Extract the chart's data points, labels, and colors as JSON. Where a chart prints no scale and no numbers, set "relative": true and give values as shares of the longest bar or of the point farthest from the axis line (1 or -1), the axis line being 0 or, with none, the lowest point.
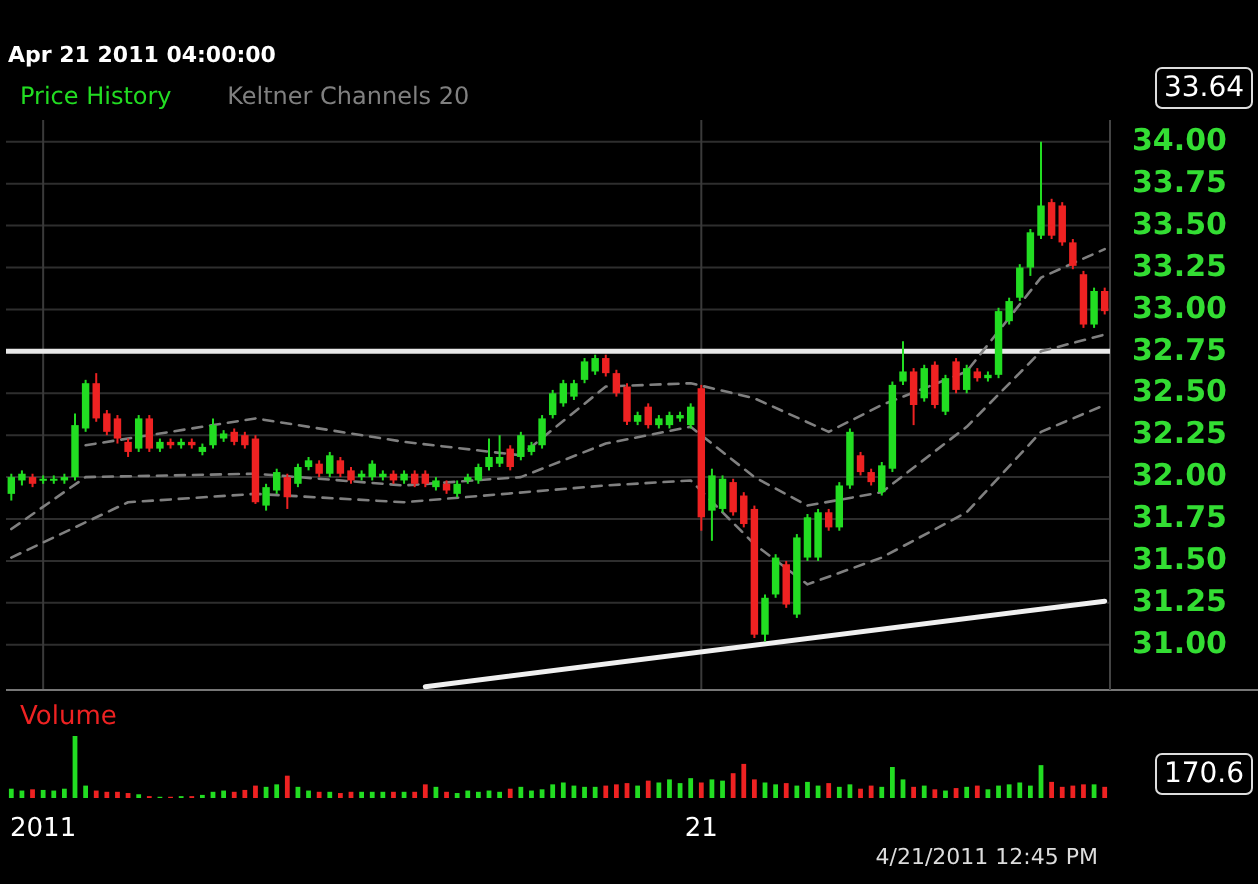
{
  "chart_data": [
    {
      "type": "candlestick",
      "subtitle": "Apr 21 2011 04:00:00",
      "legend": "top left",
      "grid": true,
      "tick_labels": "y",
      "categories": [
        null,
        null,
        null,
        "2011",
        null,
        null,
        null,
        null,
        null,
        null,
        null,
        null,
        null,
        null,
        null,
        null,
        null,
        null,
        null,
        null,
        null,
        null,
        null,
        null,
        null,
        null,
        null,
        null,
        null,
        null,
        null,
        null,
        null,
        null,
        null,
        null,
        null,
        null,
        null,
        null,
        null,
        null,
        null,
        null,
        null,
        null,
        null,
        null,
        null,
        null,
        null,
        null,
        null,
        null,
        null,
        null,
        null,
        null,
        null,
        null,
        null,
        null,
        null,
        null,
        null,
        "21",
        null,
        null,
        null,
        null,
        null,
        null,
        null,
        null,
        null,
        null,
        null,
        null,
        null,
        null,
        null,
        null,
        null,
        null,
        null,
        null,
        null,
        null,
        null,
        null,
        null,
        null,
        null,
        null,
        null,
        null,
        null,
        null,
        null,
        null,
        null,
        null,
        null,
        null
      ],
      "ylim": [
        30.73,
        34.13
      ],
      "yticks": [
        {
          "value": 31,
          "label": "31.00"
        },
        {
          "value": 31.25,
          "label": "31.25"
        },
        {
          "value": 31.5,
          "label": "31.50"
        },
        {
          "value": 31.75,
          "label": "31.75"
        },
        {
          "value": 32,
          "label": "32.00"
        },
        {
          "value": 32.25,
          "label": "32.25"
        },
        {
          "value": 32.5,
          "label": "32.50"
        },
        {
          "value": 32.75,
          "label": "32.75"
        },
        {
          "value": 33,
          "label": "33.00"
        },
        {
          "value": 33.25,
          "label": "33.25"
        },
        {
          "value": 33.5,
          "label": "33.50"
        },
        {
          "value": 33.75,
          "label": "33.75"
        },
        {
          "value": 34,
          "label": "34.00"
        }
      ],
      "ref_lines": [
        {
          "axis": "y",
          "value": 32.75,
          "color": "#e8e8e8"
        }
      ],
      "annotations": [
        "33.64"
      ],
      "series": [
        {
          "type": "candlestick",
          "name": "Price History",
          "color": "#22dd22",
          "ohlc": [
            [
              31.9,
              32.02,
              31.86,
              32.0
            ],
            [
              31.98,
              32.04,
              31.95,
              32.02
            ],
            [
              32.0,
              32.02,
              31.94,
              31.96
            ],
            [
              31.98,
              32.01,
              31.96,
              31.99
            ],
            [
              31.98,
              32.01,
              31.96,
              31.99
            ],
            [
              31.98,
              32.02,
              31.96,
              32.0
            ],
            [
              32.0,
              32.38,
              31.98,
              32.31
            ],
            [
              32.29,
              32.58,
              32.27,
              32.56
            ],
            [
              32.56,
              32.62,
              32.33,
              32.35
            ],
            [
              32.38,
              32.4,
              32.25,
              32.27
            ],
            [
              32.35,
              32.37,
              32.2,
              32.23
            ],
            [
              32.21,
              32.23,
              32.12,
              32.15
            ],
            [
              32.17,
              32.37,
              32.15,
              32.35
            ],
            [
              32.35,
              32.37,
              32.15,
              32.17
            ],
            [
              32.17,
              32.23,
              32.15,
              32.21
            ],
            [
              32.21,
              32.23,
              32.17,
              32.19
            ],
            [
              32.19,
              32.23,
              32.17,
              32.21
            ],
            [
              32.21,
              32.23,
              32.17,
              32.19
            ],
            [
              32.15,
              32.2,
              32.13,
              32.18
            ],
            [
              32.19,
              32.35,
              32.17,
              32.31
            ],
            [
              32.23,
              32.28,
              32.21,
              32.26
            ],
            [
              32.27,
              32.29,
              32.19,
              32.21
            ],
            [
              32.25,
              32.27,
              32.17,
              32.19
            ],
            [
              32.23,
              32.25,
              31.84,
              31.85
            ],
            [
              31.83,
              31.96,
              31.8,
              31.94
            ],
            [
              31.92,
              32.05,
              31.9,
              32.03
            ],
            [
              32.0,
              32.02,
              31.81,
              31.88
            ],
            [
              31.96,
              32.08,
              31.94,
              32.06
            ],
            [
              32.06,
              32.12,
              32.04,
              32.1
            ],
            [
              32.08,
              32.1,
              32.0,
              32.02
            ],
            [
              32.02,
              32.15,
              32.0,
              32.13
            ],
            [
              32.1,
              32.12,
              32.0,
              32.02
            ],
            [
              32.04,
              32.06,
              31.96,
              31.98
            ],
            [
              32.0,
              32.04,
              31.98,
              32.02
            ],
            [
              32.0,
              32.1,
              31.98,
              32.08
            ],
            [
              32.0,
              32.04,
              31.98,
              32.02
            ],
            [
              32.02,
              32.04,
              31.96,
              31.98
            ],
            [
              31.98,
              32.04,
              31.96,
              32.02
            ],
            [
              32.02,
              32.04,
              31.94,
              31.96
            ],
            [
              32.02,
              32.04,
              31.94,
              31.96
            ],
            [
              31.94,
              32.0,
              31.92,
              31.98
            ],
            [
              31.96,
              31.98,
              31.9,
              31.92
            ],
            [
              31.9,
              31.98,
              31.88,
              31.96
            ],
            [
              31.98,
              32.02,
              31.96,
              32.0
            ],
            [
              31.98,
              32.08,
              31.96,
              32.06
            ],
            [
              32.06,
              32.23,
              32.04,
              32.12
            ],
            [
              32.08,
              32.25,
              32.06,
              32.12
            ],
            [
              32.17,
              32.19,
              32.04,
              32.06
            ],
            [
              32.12,
              32.27,
              32.1,
              32.25
            ],
            [
              32.15,
              32.21,
              32.13,
              32.19
            ],
            [
              32.19,
              32.37,
              32.17,
              32.35
            ],
            [
              32.37,
              32.52,
              32.35,
              32.5
            ],
            [
              32.44,
              32.58,
              32.42,
              32.56
            ],
            [
              32.48,
              32.58,
              32.46,
              32.56
            ],
            [
              32.58,
              32.71,
              32.56,
              32.69
            ],
            [
              32.63,
              32.73,
              32.61,
              32.71
            ],
            [
              32.71,
              32.73,
              32.6,
              32.62
            ],
            [
              32.62,
              32.64,
              32.48,
              32.5
            ],
            [
              32.54,
              32.56,
              32.31,
              32.33
            ],
            [
              32.33,
              32.39,
              32.31,
              32.37
            ],
            [
              32.42,
              32.44,
              32.29,
              32.31
            ],
            [
              32.31,
              32.37,
              32.29,
              32.35
            ],
            [
              32.31,
              32.39,
              32.29,
              32.37
            ],
            [
              32.35,
              32.39,
              32.33,
              32.37
            ],
            [
              32.31,
              32.44,
              32.29,
              32.42
            ],
            [
              32.53,
              32.55,
              31.68,
              31.76
            ],
            [
              31.8,
              32.05,
              31.62,
              32.01
            ],
            [
              31.81,
              32.01,
              31.79,
              31.99
            ],
            [
              31.97,
              31.99,
              31.77,
              31.79
            ],
            [
              31.89,
              31.91,
              31.7,
              31.72
            ],
            [
              31.81,
              31.83,
              31.04,
              31.06
            ],
            [
              31.06,
              31.3,
              31.02,
              31.28
            ],
            [
              31.3,
              31.54,
              31.28,
              31.52
            ],
            [
              31.48,
              31.5,
              31.22,
              31.24
            ],
            [
              31.18,
              31.66,
              31.16,
              31.64
            ],
            [
              31.52,
              31.78,
              31.5,
              31.76
            ],
            [
              31.52,
              31.81,
              31.5,
              31.79
            ],
            [
              31.79,
              31.81,
              31.68,
              31.7
            ],
            [
              31.7,
              31.97,
              31.68,
              31.95
            ],
            [
              31.95,
              32.29,
              31.93,
              32.27
            ],
            [
              32.13,
              32.15,
              32.01,
              32.03
            ],
            [
              32.03,
              32.05,
              31.95,
              31.97
            ],
            [
              31.91,
              32.09,
              31.89,
              32.07
            ],
            [
              32.05,
              32.57,
              32.03,
              32.55
            ],
            [
              32.57,
              32.81,
              32.55,
              32.63
            ],
            [
              32.63,
              32.65,
              32.31,
              32.43
            ],
            [
              32.47,
              32.67,
              32.45,
              32.65
            ],
            [
              32.67,
              32.69,
              32.41,
              32.43
            ],
            [
              32.39,
              32.61,
              32.37,
              32.59
            ],
            [
              32.69,
              32.71,
              32.5,
              32.52
            ],
            [
              32.52,
              32.67,
              32.5,
              32.65
            ],
            [
              32.63,
              32.65,
              32.57,
              32.59
            ],
            [
              32.59,
              32.63,
              32.57,
              32.61
            ],
            [
              32.61,
              33.01,
              32.59,
              32.99
            ],
            [
              32.93,
              33.07,
              32.91,
              33.05
            ],
            [
              33.07,
              33.27,
              33.05,
              33.25
            ],
            [
              33.25,
              33.48,
              33.2,
              33.46
            ],
            [
              33.44,
              34.0,
              33.42,
              33.62
            ],
            [
              33.64,
              33.66,
              33.42,
              33.44
            ],
            [
              33.62,
              33.64,
              33.38,
              33.4
            ],
            [
              33.4,
              33.42,
              33.24,
              33.26
            ],
            [
              33.21,
              33.23,
              32.89,
              32.91
            ],
            [
              32.91,
              33.13,
              32.89,
              33.11
            ],
            [
              33.11,
              33.13,
              32.97,
              32.99
            ]
          ],
          "colors": [
            "#22dd22",
            "#22dd22",
            "#ee2222",
            "#22dd22",
            "#22dd22",
            "#22dd22",
            "#22dd22",
            "#22dd22",
            "#ee2222",
            "#ee2222",
            "#ee2222",
            "#ee2222",
            "#22dd22",
            "#ee2222",
            "#22dd22",
            "#ee2222",
            "#22dd22",
            "#ee2222",
            "#22dd22",
            "#22dd22",
            "#22dd22",
            "#ee2222",
            "#ee2222",
            "#ee2222",
            "#22dd22",
            "#22dd22",
            "#ee2222",
            "#22dd22",
            "#22dd22",
            "#ee2222",
            "#22dd22",
            "#ee2222",
            "#ee2222",
            "#22dd22",
            "#22dd22",
            "#22dd22",
            "#ee2222",
            "#22dd22",
            "#ee2222",
            "#ee2222",
            "#22dd22",
            "#ee2222",
            "#22dd22",
            "#22dd22",
            "#22dd22",
            "#22dd22",
            "#22dd22",
            "#ee2222",
            "#22dd22",
            "#22dd22",
            "#22dd22",
            "#22dd22",
            "#22dd22",
            "#22dd22",
            "#22dd22",
            "#22dd22",
            "#ee2222",
            "#ee2222",
            "#ee2222",
            "#22dd22",
            "#ee2222",
            "#22dd22",
            "#22dd22",
            "#22dd22",
            "#22dd22",
            "#ee2222",
            "#22dd22",
            "#22dd22",
            "#ee2222",
            "#ee2222",
            "#ee2222",
            "#22dd22",
            "#22dd22",
            "#ee2222",
            "#22dd22",
            "#22dd22",
            "#22dd22",
            "#ee2222",
            "#22dd22",
            "#22dd22",
            "#ee2222",
            "#ee2222",
            "#22dd22",
            "#22dd22",
            "#22dd22",
            "#ee2222",
            "#22dd22",
            "#ee2222",
            "#22dd22",
            "#ee2222",
            "#22dd22",
            "#ee2222",
            "#22dd22",
            "#22dd22",
            "#22dd22",
            "#22dd22",
            "#22dd22",
            "#22dd22",
            "#ee2222",
            "#ee2222",
            "#ee2222",
            "#ee2222",
            "#22dd22",
            "#ee2222"
          ]
        },
        {
          "type": "line",
          "name": "Keltner Channels 20",
          "color": "#808080",
          "line_style": "dashed",
          "values": [
            31.69,
            null,
            null,
            null,
            null,
            null,
            null,
            32.0,
            null,
            null,
            null,
            null,
            null,
            null,
            null,
            null,
            null,
            null,
            null,
            null,
            null,
            null,
            null,
            32.02,
            null,
            null,
            null,
            null,
            null,
            null,
            null,
            null,
            null,
            null,
            null,
            null,
            null,
            31.95,
            null,
            null,
            null,
            null,
            null,
            null,
            null,
            null,
            null,
            null,
            32.0,
            null,
            null,
            null,
            null,
            null,
            null,
            null,
            32.2,
            null,
            null,
            null,
            null,
            null,
            null,
            null,
            32.3,
            null,
            null,
            null,
            null,
            null,
            32.0,
            null,
            null,
            null,
            null,
            31.83,
            null,
            null,
            null,
            null,
            null,
            null,
            31.91,
            null,
            null,
            null,
            null,
            null,
            null,
            null,
            32.3,
            null,
            null,
            null,
            null,
            null,
            null,
            32.75,
            null,
            null,
            null,
            null,
            null,
            32.85
          ]
        },
        {
          "type": "line",
          "color": "#808080",
          "line_style": "dashed",
          "values": [
            null,
            null,
            null,
            null,
            null,
            null,
            null,
            32.19,
            null,
            null,
            null,
            null,
            null,
            null,
            null,
            null,
            null,
            null,
            null,
            null,
            null,
            null,
            null,
            32.35,
            null,
            null,
            null,
            null,
            null,
            null,
            null,
            null,
            null,
            null,
            null,
            null,
            null,
            32.21,
            null,
            null,
            null,
            null,
            null,
            null,
            null,
            null,
            null,
            null,
            32.13,
            null,
            null,
            null,
            null,
            null,
            null,
            null,
            32.54,
            null,
            null,
            null,
            null,
            null,
            null,
            null,
            32.56,
            null,
            null,
            null,
            null,
            null,
            32.47,
            null,
            null,
            null,
            null,
            null,
            null,
            32.27,
            null,
            null,
            null,
            null,
            32.43,
            null,
            null,
            null,
            null,
            null,
            null,
            null,
            32.63,
            null,
            null,
            null,
            null,
            null,
            null,
            33.19,
            null,
            null,
            null,
            null,
            null,
            33.36
          ]
        },
        {
          "type": "line",
          "color": "#808080",
          "line_style": "dashed",
          "values": [
            31.52,
            null,
            null,
            null,
            null,
            null,
            null,
            null,
            null,
            null,
            null,
            31.85,
            null,
            null,
            null,
            null,
            null,
            null,
            null,
            null,
            null,
            null,
            null,
            31.9,
            null,
            null,
            null,
            null,
            null,
            null,
            null,
            null,
            null,
            null,
            null,
            null,
            null,
            31.85,
            null,
            null,
            null,
            null,
            null,
            null,
            null,
            null,
            null,
            null,
            null,
            null,
            null,
            null,
            null,
            null,
            null,
            null,
            31.95,
            null,
            null,
            null,
            null,
            null,
            null,
            null,
            31.98,
            null,
            null,
            null,
            null,
            null,
            31.6,
            null,
            null,
            null,
            null,
            31.36,
            null,
            null,
            null,
            null,
            null,
            null,
            31.52,
            null,
            null,
            null,
            null,
            null,
            null,
            null,
            31.79,
            null,
            null,
            null,
            null,
            null,
            null,
            32.27,
            null,
            null,
            null,
            null,
            null,
            32.43
          ]
        },
        {
          "type": "line",
          "color": "#f0f0f0",
          "line_style": "solid",
          "values": [
            null,
            null,
            null,
            null,
            null,
            null,
            null,
            null,
            null,
            null,
            null,
            null,
            null,
            null,
            null,
            null,
            null,
            null,
            null,
            null,
            null,
            null,
            null,
            null,
            null,
            null,
            null,
            null,
            null,
            null,
            null,
            null,
            null,
            null,
            null,
            null,
            null,
            null,
            null,
            30.75,
            null,
            null,
            null,
            null,
            null,
            null,
            null,
            null,
            null,
            null,
            null,
            null,
            null,
            null,
            null,
            null,
            null,
            null,
            null,
            null,
            null,
            null,
            null,
            null,
            null,
            null,
            null,
            null,
            null,
            null,
            null,
            null,
            null,
            null,
            null,
            null,
            null,
            null,
            null,
            null,
            null,
            null,
            null,
            null,
            null,
            null,
            null,
            null,
            null,
            null,
            null,
            null,
            null,
            null,
            null,
            null,
            null,
            null,
            null,
            null,
            null,
            null,
            null,
            31.26
          ]
        }
      ]
    },
    {
      "type": "bar",
      "title": "Volume",
      "relative": true,
      "tick_labels": "x",
      "categories": [
        null,
        null,
        null,
        "2011",
        null,
        null,
        null,
        null,
        null,
        null,
        null,
        null,
        null,
        null,
        null,
        null,
        null,
        null,
        null,
        null,
        null,
        null,
        null,
        null,
        null,
        null,
        null,
        null,
        null,
        null,
        null,
        null,
        null,
        null,
        null,
        null,
        null,
        null,
        null,
        null,
        null,
        null,
        null,
        null,
        null,
        null,
        null,
        null,
        null,
        null,
        null,
        null,
        null,
        null,
        null,
        null,
        null,
        null,
        null,
        null,
        null,
        null,
        null,
        null,
        null,
        "21",
        null,
        null,
        null,
        null,
        null,
        null,
        null,
        null,
        null,
        null,
        null,
        null,
        null,
        null,
        null,
        null,
        null,
        null,
        null,
        null,
        null,
        null,
        null,
        null,
        null,
        null,
        null,
        null,
        null,
        null,
        null,
        null,
        null,
        null,
        null,
        null,
        null,
        null
      ],
      "annotations": [
        "170.6",
        "4/21/2011 12:45 PM"
      ],
      "values": [
        0.15,
        0.12,
        0.14,
        0.13,
        0.12,
        0.15,
        1.0,
        0.2,
        0.12,
        0.1,
        0.1,
        0.08,
        0.06,
        0.03,
        0.02,
        0.02,
        0.03,
        0.03,
        0.05,
        0.1,
        0.12,
        0.1,
        0.13,
        0.2,
        0.18,
        0.22,
        0.36,
        0.18,
        0.12,
        0.1,
        0.1,
        0.08,
        0.1,
        0.1,
        0.1,
        0.1,
        0.1,
        0.1,
        0.1,
        0.22,
        0.18,
        0.1,
        0.08,
        0.12,
        0.1,
        0.12,
        0.1,
        0.15,
        0.18,
        0.12,
        0.14,
        0.22,
        0.25,
        0.2,
        0.18,
        0.18,
        0.2,
        0.22,
        0.24,
        0.2,
        0.28,
        0.25,
        0.3,
        0.24,
        0.32,
        0.25,
        0.3,
        0.28,
        0.4,
        0.55,
        0.3,
        0.25,
        0.22,
        0.24,
        0.2,
        0.26,
        0.2,
        0.24,
        0.18,
        0.22,
        0.15,
        0.2,
        0.18,
        0.5,
        0.3,
        0.18,
        0.2,
        0.14,
        0.12,
        0.16,
        0.18,
        0.2,
        0.14,
        0.2,
        0.22,
        0.25,
        0.2,
        0.53,
        0.26,
        0.18,
        0.2,
        0.22,
        0.22,
        0.18
      ],
      "colors": [
        "#22dd22",
        "#22dd22",
        "#ee2222",
        "#22dd22",
        "#22dd22",
        "#22dd22",
        "#22dd22",
        "#22dd22",
        "#ee2222",
        "#ee2222",
        "#ee2222",
        "#ee2222",
        "#22dd22",
        "#ee2222",
        "#22dd22",
        "#ee2222",
        "#22dd22",
        "#ee2222",
        "#22dd22",
        "#22dd22",
        "#22dd22",
        "#ee2222",
        "#ee2222",
        "#ee2222",
        "#22dd22",
        "#22dd22",
        "#ee2222",
        "#22dd22",
        "#22dd22",
        "#ee2222",
        "#22dd22",
        "#ee2222",
        "#ee2222",
        "#22dd22",
        "#22dd22",
        "#22dd22",
        "#ee2222",
        "#22dd22",
        "#ee2222",
        "#ee2222",
        "#22dd22",
        "#ee2222",
        "#22dd22",
        "#22dd22",
        "#22dd22",
        "#22dd22",
        "#22dd22",
        "#ee2222",
        "#22dd22",
        "#22dd22",
        "#22dd22",
        "#22dd22",
        "#22dd22",
        "#22dd22",
        "#22dd22",
        "#22dd22",
        "#ee2222",
        "#ee2222",
        "#ee2222",
        "#22dd22",
        "#ee2222",
        "#22dd22",
        "#22dd22",
        "#22dd22",
        "#22dd22",
        "#ee2222",
        "#22dd22",
        "#22dd22",
        "#ee2222",
        "#ee2222",
        "#ee2222",
        "#22dd22",
        "#22dd22",
        "#ee2222",
        "#22dd22",
        "#22dd22",
        "#22dd22",
        "#ee2222",
        "#22dd22",
        "#22dd22",
        "#ee2222",
        "#ee2222",
        "#22dd22",
        "#22dd22",
        "#22dd22",
        "#ee2222",
        "#22dd22",
        "#ee2222",
        "#22dd22",
        "#ee2222",
        "#22dd22",
        "#ee2222",
        "#22dd22",
        "#22dd22",
        "#22dd22",
        "#22dd22",
        "#22dd22",
        "#22dd22",
        "#ee2222",
        "#ee2222",
        "#ee2222",
        "#ee2222",
        "#22dd22",
        "#ee2222"
      ]
    }
  ]
}
